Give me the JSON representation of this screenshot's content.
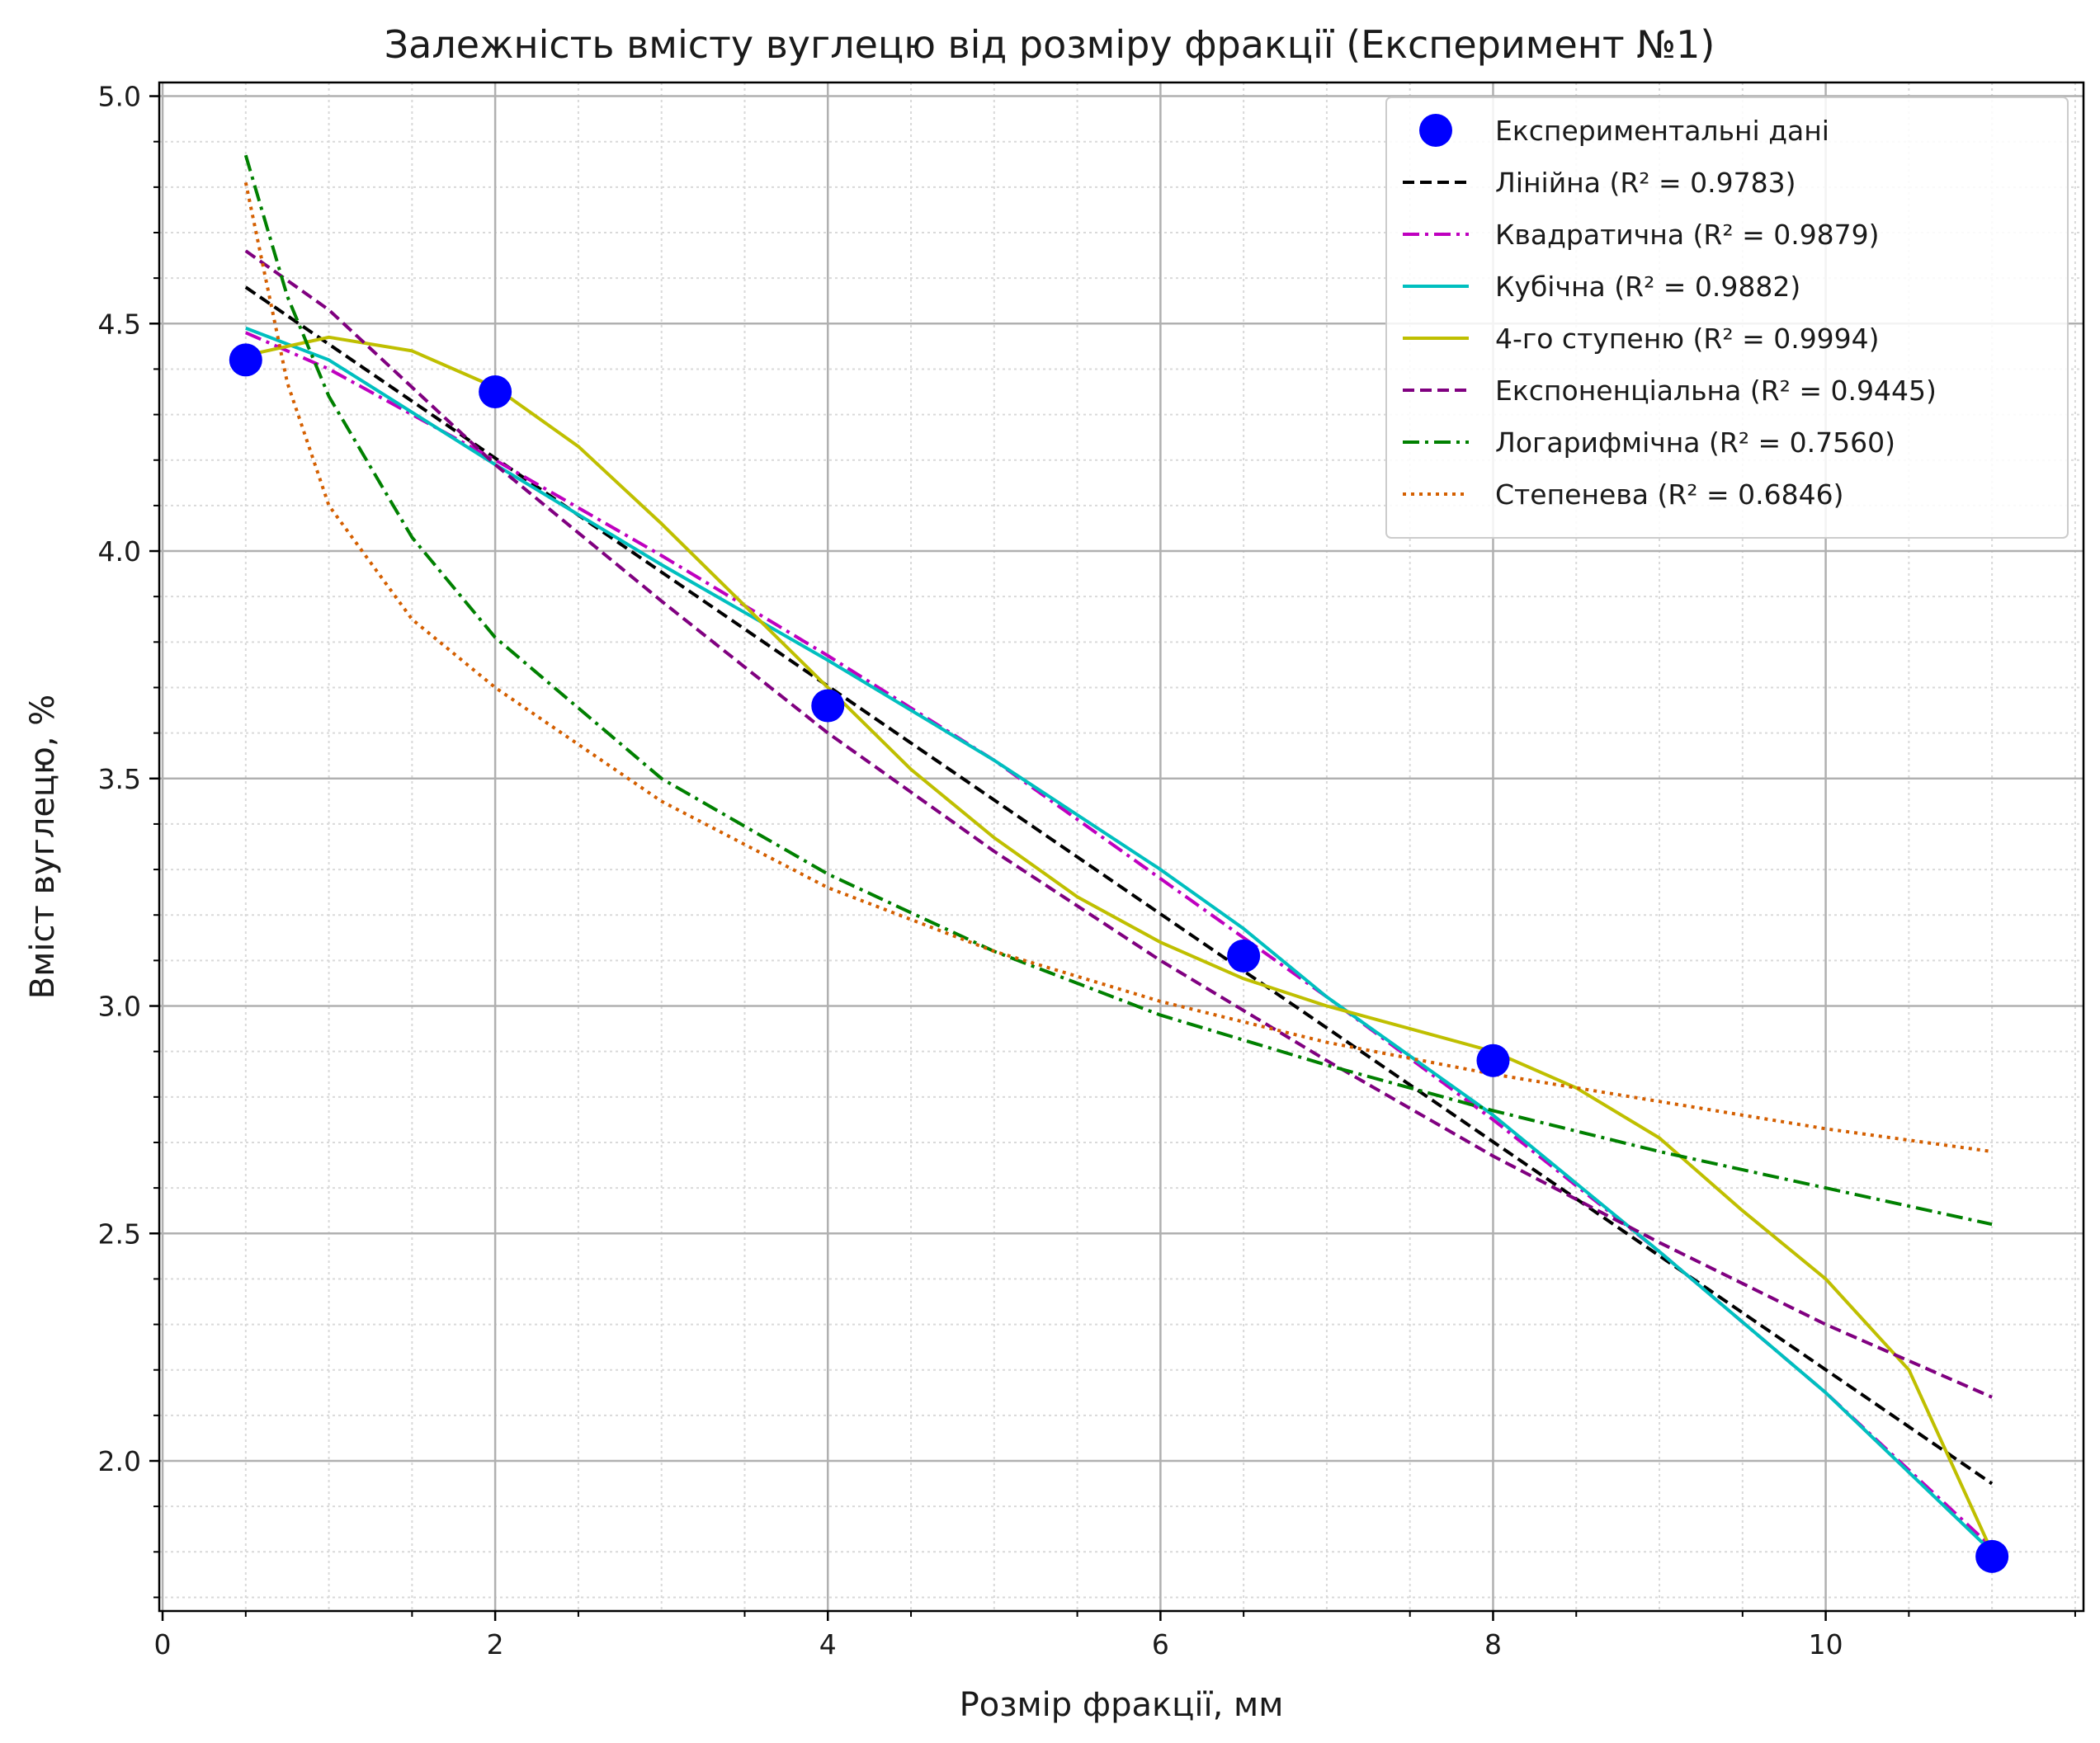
{
  "chart_data": {
    "type": "line",
    "title": "Залежність вмісту вуглецю від розміру фракції (Експеримент №1)",
    "xlabel": "Розмір фракції, мм",
    "ylabel": "Вміст вуглецю, %",
    "xlim": [
      -0.02,
      11.55
    ],
    "ylim": [
      1.67,
      5.03
    ],
    "xticks": [
      0,
      2,
      4,
      6,
      8,
      10
    ],
    "xtick_labels": [
      "0",
      "2",
      "4",
      "6",
      "8",
      "10"
    ],
    "yticks": [
      2.0,
      2.5,
      3.0,
      3.5,
      4.0,
      4.5,
      5.0
    ],
    "ytick_labels": [
      "2.0",
      "2.5",
      "3.0",
      "3.5",
      "4.0",
      "4.5",
      "5.0"
    ],
    "grid": true,
    "minor_grid": true,
    "legend_position": "top-right",
    "scatter": {
      "name": "Експериментальні дані",
      "color": "#0000ff",
      "x": [
        0.5,
        2,
        4,
        6.5,
        8,
        11
      ],
      "y": [
        4.42,
        4.35,
        3.66,
        3.11,
        2.88,
        1.79
      ]
    },
    "series": [
      {
        "name": "Лінійна (R² = 0.9783)",
        "color": "#000000",
        "dash": "dashed",
        "x": [
          0.5,
          11
        ],
        "y": [
          4.58,
          1.95
        ]
      },
      {
        "name": "Квадратична (R² = 0.9879)",
        "color": "#bf00bf",
        "dash": "dashdot",
        "x": [
          0.5,
          1,
          2,
          3,
          4,
          5,
          6,
          7,
          8,
          9,
          10,
          11
        ],
        "y": [
          4.48,
          4.4,
          4.2,
          3.99,
          3.77,
          3.54,
          3.28,
          3.02,
          2.75,
          2.46,
          2.15,
          1.81
        ]
      },
      {
        "name": "Кубічна (R² = 0.9882)",
        "color": "#00bfbf",
        "dash": "solid",
        "x": [
          0.5,
          1,
          2,
          3,
          4,
          5,
          6,
          6.5,
          7,
          8,
          9,
          10,
          11
        ],
        "y": [
          4.49,
          4.42,
          4.19,
          3.97,
          3.76,
          3.54,
          3.3,
          3.17,
          3.02,
          2.76,
          2.46,
          2.15,
          1.8
        ]
      },
      {
        "name": "4-го ступеню (R² = 0.9994)",
        "color": "#bfbf00",
        "dash": "solid",
        "x": [
          0.5,
          1,
          1.5,
          2,
          2.5,
          3,
          3.5,
          4,
          4.5,
          5,
          5.5,
          6,
          6.5,
          7,
          7.5,
          8,
          8.5,
          9,
          9.5,
          10,
          10.5,
          11
        ],
        "y": [
          4.43,
          4.47,
          4.44,
          4.36,
          4.23,
          4.06,
          3.88,
          3.7,
          3.52,
          3.37,
          3.24,
          3.14,
          3.06,
          3.0,
          2.95,
          2.9,
          2.82,
          2.71,
          2.55,
          2.4,
          2.2,
          1.8
        ]
      },
      {
        "name": "Експоненціальна (R² = 0.9445)",
        "color": "#800080",
        "dash": "dashed",
        "x": [
          0.5,
          1,
          2,
          3,
          4,
          5,
          6,
          7,
          8,
          9,
          10,
          11
        ],
        "y": [
          4.66,
          4.53,
          4.19,
          3.89,
          3.6,
          3.34,
          3.1,
          2.88,
          2.67,
          2.48,
          2.3,
          2.14
        ]
      },
      {
        "name": "Логарифмічна (R² = 0.7560)",
        "color": "#008000",
        "dash": "dashdot",
        "x": [
          0.5,
          0.75,
          1,
          1.5,
          2,
          3,
          4,
          5,
          6,
          7,
          8,
          9,
          10,
          11
        ],
        "y": [
          4.87,
          4.56,
          4.34,
          4.03,
          3.81,
          3.5,
          3.29,
          3.12,
          2.98,
          2.87,
          2.77,
          2.68,
          2.6,
          2.52
        ]
      },
      {
        "name": "Степенева (R² = 0.6846)",
        "color": "#d45f00",
        "dash": "dotted",
        "x": [
          0.5,
          0.75,
          1,
          1.5,
          2,
          3,
          4,
          5,
          6,
          7,
          8,
          9,
          10,
          11
        ],
        "y": [
          4.81,
          4.37,
          4.1,
          3.85,
          3.7,
          3.45,
          3.26,
          3.12,
          3.01,
          2.92,
          2.85,
          2.79,
          2.73,
          2.68
        ]
      }
    ]
  }
}
